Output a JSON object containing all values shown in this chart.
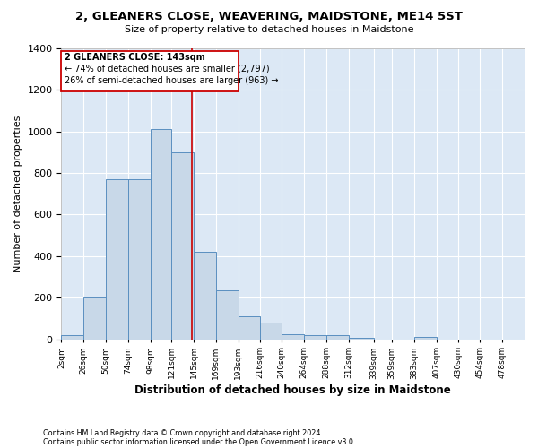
{
  "title": "2, GLEANERS CLOSE, WEAVERING, MAIDSTONE, ME14 5ST",
  "subtitle": "Size of property relative to detached houses in Maidstone",
  "xlabel": "Distribution of detached houses by size in Maidstone",
  "ylabel": "Number of detached properties",
  "footnote1": "Contains HM Land Registry data © Crown copyright and database right 2024.",
  "footnote2": "Contains public sector information licensed under the Open Government Licence v3.0.",
  "annotation_line1": "2 GLEANERS CLOSE: 143sqm",
  "annotation_line2": "← 74% of detached houses are smaller (2,797)",
  "annotation_line3": "26% of semi-detached houses are larger (963) →",
  "bar_color": "#c8d8e8",
  "bar_edge_color": "#5a8fc0",
  "marker_line_color": "#cc0000",
  "marker_value": 143,
  "background_color": "#dce8f5",
  "ylim": [
    0,
    1400
  ],
  "yticks": [
    0,
    200,
    400,
    600,
    800,
    1000,
    1200,
    1400
  ],
  "categories": [
    "2sqm",
    "26sqm",
    "50sqm",
    "74sqm",
    "98sqm",
    "121sqm",
    "145sqm",
    "169sqm",
    "193sqm",
    "216sqm",
    "240sqm",
    "264sqm",
    "288sqm",
    "312sqm",
    "339sqm",
    "359sqm",
    "383sqm",
    "407sqm",
    "430sqm",
    "454sqm",
    "478sqm"
  ],
  "bin_edges": [
    2,
    26,
    50,
    74,
    98,
    121,
    145,
    169,
    193,
    216,
    240,
    264,
    288,
    312,
    339,
    359,
    383,
    407,
    430,
    454,
    478,
    502
  ],
  "values": [
    20,
    200,
    770,
    770,
    1010,
    900,
    420,
    235,
    110,
    80,
    25,
    20,
    20,
    5,
    0,
    0,
    10,
    0,
    0,
    0,
    0
  ]
}
